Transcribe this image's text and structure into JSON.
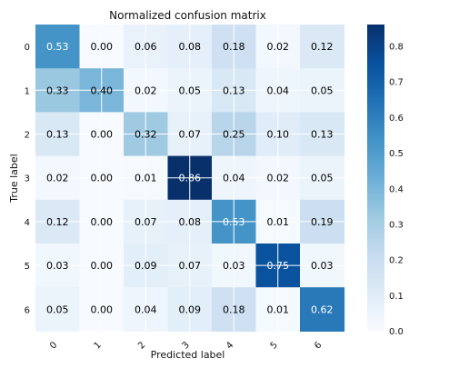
{
  "chart_data": {
    "type": "heatmap",
    "title": "Normalized confusion matrix",
    "xlabel": "Predicted label",
    "ylabel": "True label",
    "x_categories": [
      "0",
      "1",
      "2",
      "3",
      "4",
      "5",
      "6"
    ],
    "y_categories": [
      "0",
      "1",
      "2",
      "3",
      "4",
      "5",
      "6"
    ],
    "values": [
      [
        0.53,
        0.0,
        0.06,
        0.08,
        0.18,
        0.02,
        0.12
      ],
      [
        0.33,
        0.4,
        0.02,
        0.05,
        0.13,
        0.04,
        0.05
      ],
      [
        0.13,
        0.0,
        0.32,
        0.07,
        0.25,
        0.1,
        0.13
      ],
      [
        0.02,
        0.0,
        0.01,
        0.86,
        0.04,
        0.02,
        0.05
      ],
      [
        0.12,
        0.0,
        0.07,
        0.08,
        0.53,
        0.01,
        0.19
      ],
      [
        0.03,
        0.0,
        0.09,
        0.07,
        0.03,
        0.75,
        0.03
      ],
      [
        0.05,
        0.0,
        0.04,
        0.09,
        0.18,
        0.01,
        0.62
      ]
    ],
    "value_labels": [
      [
        "0.53",
        "0.00",
        "0.06",
        "0.08",
        "0.18",
        "0.02",
        "0.12"
      ],
      [
        "0.33",
        "0.40",
        "0.02",
        "0.05",
        "0.13",
        "0.04",
        "0.05"
      ],
      [
        "0.13",
        "0.00",
        "0.32",
        "0.07",
        "0.25",
        "0.10",
        "0.13"
      ],
      [
        "0.02",
        "0.00",
        "0.01",
        "0.86",
        "0.04",
        "0.02",
        "0.05"
      ],
      [
        "0.12",
        "0.00",
        "0.07",
        "0.08",
        "0.53",
        "0.01",
        "0.19"
      ],
      [
        "0.03",
        "0.00",
        "0.09",
        "0.07",
        "0.03",
        "0.75",
        "0.03"
      ],
      [
        "0.05",
        "0.00",
        "0.04",
        "0.09",
        "0.18",
        "0.01",
        "0.62"
      ]
    ],
    "colormap": "Blues",
    "vmin": 0.0,
    "vmax": 0.86,
    "colorbar_ticks": [
      "0.0",
      "0.1",
      "0.2",
      "0.3",
      "0.4",
      "0.5",
      "0.6",
      "0.7",
      "0.8"
    ],
    "text_threshold": 0.43,
    "grid": true,
    "legend": "colorbar-right"
  }
}
